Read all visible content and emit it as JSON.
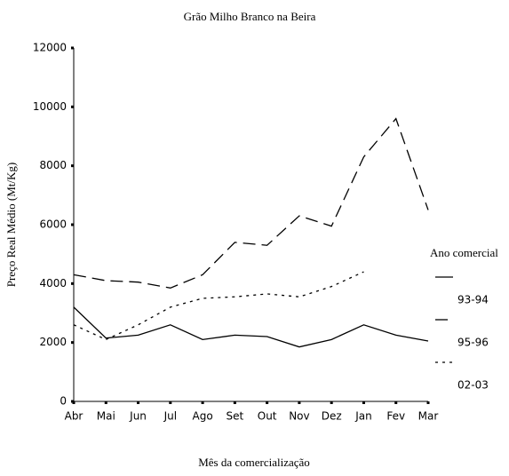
{
  "chart_data": {
    "type": "line",
    "title": "Grão Milho Branco na Beira",
    "x_label": "Mês da comercialização",
    "y_label": "Preço Real Médio (Mt/Kg)",
    "legend_title": "Ano comercial",
    "categories": [
      "Abr",
      "Mai",
      "Jun",
      "Jul",
      "Ago",
      "Set",
      "Out",
      "Nov",
      "Dez",
      "Jan",
      "Fev",
      "Mar"
    ],
    "series": [
      {
        "name": "93-94",
        "color": "#000000",
        "dash": "solid",
        "values": [
          3200,
          2150,
          2250,
          2600,
          2100,
          2250,
          2200,
          1850,
          2100,
          2600,
          2250,
          2050
        ]
      },
      {
        "name": "95-96",
        "color": "#000000",
        "dash": "dashed",
        "values": [
          4300,
          4100,
          4050,
          3850,
          4300,
          5400,
          5300,
          6300,
          5950,
          8300,
          9600,
          6500
        ]
      },
      {
        "name": "02-03",
        "color": "#000000",
        "dash": "dotted",
        "values": [
          2600,
          2100,
          2600,
          3200,
          3500,
          3550,
          3650,
          3550,
          3900,
          4400,
          null,
          null
        ]
      }
    ],
    "ylim": [
      0,
      12000
    ],
    "yticks": [
      0,
      2000,
      4000,
      6000,
      8000,
      10000,
      12000
    ]
  }
}
